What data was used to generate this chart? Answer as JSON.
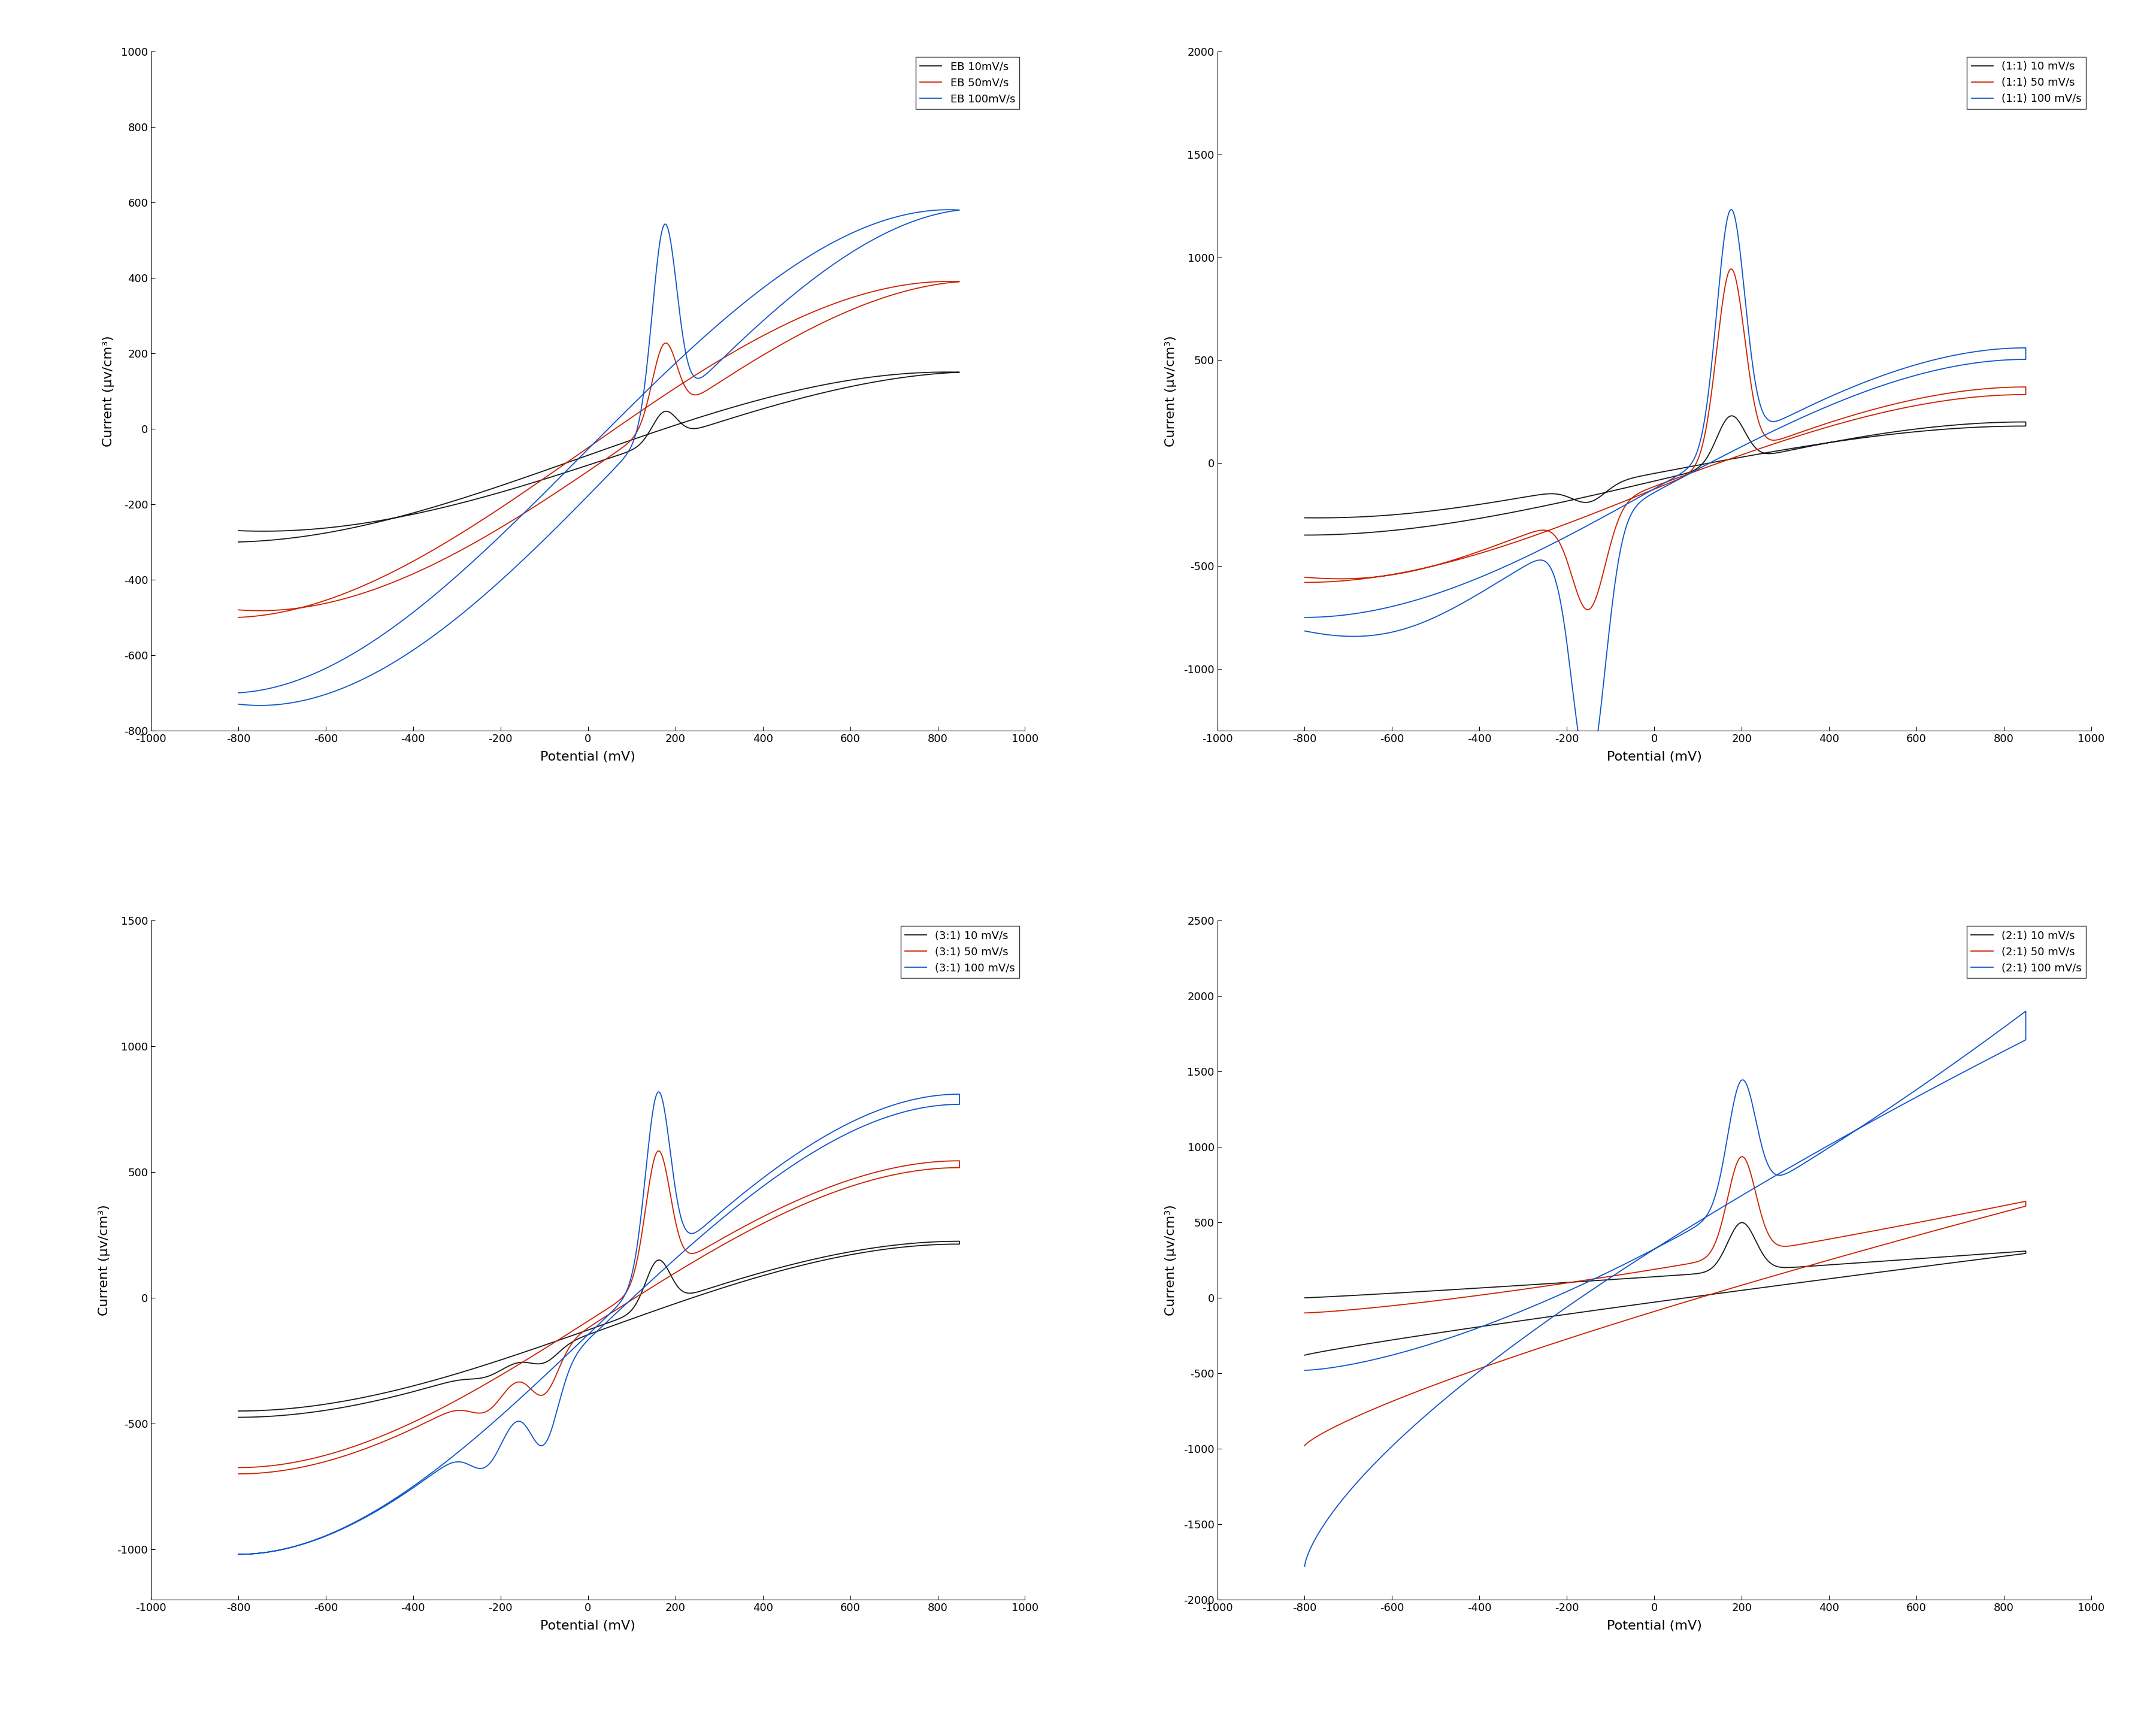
{
  "panels": [
    {
      "labels": [
        "EB 10mV/s",
        "EB 50mV/s",
        "EB 100mV/s"
      ],
      "colors": [
        "#1a1a1a",
        "#cc2200",
        "#1155cc"
      ],
      "ylim": [
        -800,
        1000
      ],
      "yticks": [
        -800,
        -600,
        -400,
        -200,
        0,
        200,
        400,
        600,
        800,
        1000
      ],
      "ylabel": "Current (μv/cm³)"
    },
    {
      "labels": [
        "(1:1) 10 mV/s",
        "(1:1) 50 mV/s",
        "(1:1) 100 mV/s"
      ],
      "colors": [
        "#1a1a1a",
        "#cc2200",
        "#1155cc"
      ],
      "ylim": [
        -1300,
        2000
      ],
      "yticks": [
        -1000,
        -500,
        0,
        500,
        1000,
        1500,
        2000
      ],
      "ylabel": "Current (μv/cm³)"
    },
    {
      "labels": [
        "(3:1) 10 mV/s",
        "(3:1) 50 mV/s",
        "(3:1) 100 mV/s"
      ],
      "colors": [
        "#1a1a1a",
        "#cc2200",
        "#1155cc"
      ],
      "ylim": [
        -1200,
        1500
      ],
      "yticks": [
        -1000,
        -500,
        0,
        500,
        1000,
        1500
      ],
      "ylabel": "Current (μv/cm³)"
    },
    {
      "labels": [
        "(2:1) 10 mV/s",
        "(2:1) 50 mV/s",
        "(2:1) 100 mV/s"
      ],
      "colors": [
        "#1a1a1a",
        "#cc2200",
        "#1155cc"
      ],
      "ylim": [
        -2000,
        2500
      ],
      "yticks": [
        -2000,
        -1500,
        -1000,
        -500,
        0,
        500,
        1000,
        1500,
        2000,
        2500
      ],
      "ylabel": "Current (μv/cm³)"
    }
  ],
  "xlim": [
    -1000,
    1000
  ],
  "xticks": [
    -1000,
    -800,
    -600,
    -400,
    -200,
    0,
    200,
    400,
    600,
    800,
    1000
  ],
  "xlabel": "Potential (mV)",
  "linewidth": 1.3,
  "legend_fontsize": 13,
  "tick_fontsize": 13,
  "axis_label_fontsize": 16
}
